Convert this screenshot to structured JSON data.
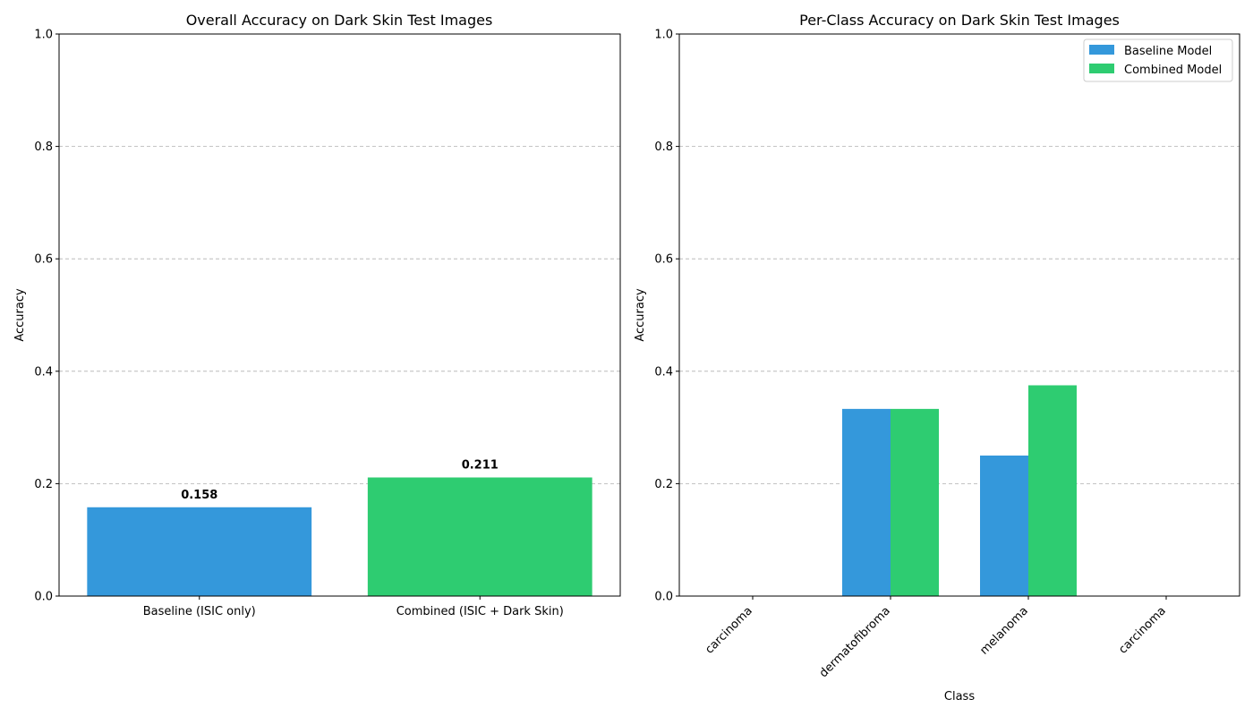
{
  "chart_data": [
    {
      "type": "bar",
      "title": "Overall Accuracy on Dark Skin Test Images",
      "xlabel": "",
      "ylabel": "Accuracy",
      "ylim": [
        0,
        1.0
      ],
      "yticks": [
        "0.0",
        "0.2",
        "0.4",
        "0.6",
        "0.8",
        "1.0"
      ],
      "grid": "y-dashed",
      "categories": [
        "Baseline (ISIC only)",
        "Combined (ISIC + Dark Skin)"
      ],
      "values": [
        0.158,
        0.211
      ],
      "value_labels": [
        "0.158",
        "0.211"
      ],
      "colors": [
        "#3498db",
        "#2ecc71"
      ]
    },
    {
      "type": "bar",
      "title": "Per-Class Accuracy on Dark Skin Test Images",
      "xlabel": "Class",
      "ylabel": "Accuracy",
      "ylim": [
        0,
        1.0
      ],
      "yticks": [
        "0.0",
        "0.2",
        "0.4",
        "0.6",
        "0.8",
        "1.0"
      ],
      "grid": "y-dashed",
      "legend_position": "top-right",
      "categories": [
        "carcinoma",
        "dermatofibroma",
        "melanoma",
        "carcinoma"
      ],
      "series": [
        {
          "name": "Baseline Model",
          "values": [
            0.0,
            0.333,
            0.25,
            0.0
          ],
          "color": "#3498db"
        },
        {
          "name": "Combined Model",
          "values": [
            0.0,
            0.333,
            0.375,
            0.0
          ],
          "color": "#2ecc71"
        }
      ]
    }
  ]
}
